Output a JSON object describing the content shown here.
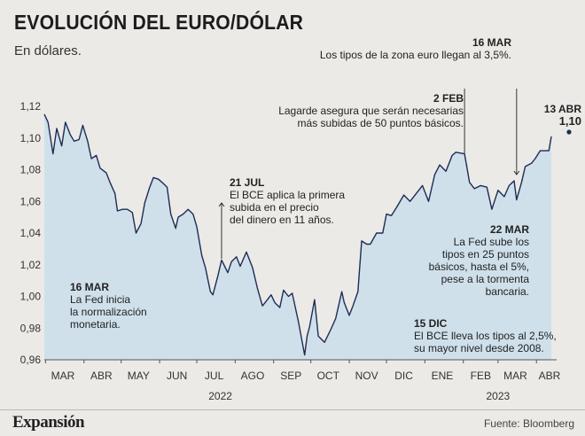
{
  "title": "EVOLUCIÓN DEL EURO/DÓLAR",
  "subtitle": "En dólares.",
  "footer": {
    "brand": "Expansión",
    "source": "Fuente: Bloomberg"
  },
  "colors": {
    "line": "#1d2c57",
    "area": "#cfe0ea",
    "background": "#eceae6"
  },
  "last_point": {
    "date": "13 ABR",
    "value": "1,10"
  },
  "annotations": [
    {
      "id": "a1",
      "date": "16 MAR",
      "l1": "La Fed inicia",
      "l2": "la normalización",
      "l3": "monetaria."
    },
    {
      "id": "a2",
      "date": "21 JUL",
      "l1": "El BCE aplica la primera",
      "l2": "subida en el precio",
      "l3": "del dinero en 11 años."
    },
    {
      "id": "a3",
      "date": "15 DIC",
      "l1": "El BCE lleva los tipos al 2,5%,",
      "l2": "su mayor nivel desde 2008."
    },
    {
      "id": "a4",
      "date": "2 FEB",
      "l1": "Lagarde asegura que serán necesarias",
      "l2": "más subidas de 50 puntos básicos."
    },
    {
      "id": "a5",
      "date": "22 MAR",
      "l1": "La Fed sube los",
      "l2": "tipos en 25 puntos",
      "l3": "básicos, hasta el 5%,",
      "l4": "pese a la tormenta",
      "l5": "bancaria."
    },
    {
      "id": "a6",
      "date": "16 MAR",
      "l1": "Los tipos de la zona euro llegan al 3,5%."
    }
  ],
  "chart_data": {
    "type": "area",
    "title": "EVOLUCIÓN DEL EURO/DÓLAR",
    "subtitle": "En dólares.",
    "xlabel": "",
    "ylabel": "",
    "ylim": [
      0.96,
      1.12
    ],
    "yticks": [
      "1,12",
      "1,10",
      "1,08",
      "1,06",
      "1,04",
      "1,02",
      "1,00",
      "0,98",
      "0,96"
    ],
    "x_months": [
      "MAR",
      "ABR",
      "MAY",
      "JUN",
      "JUL",
      "AGO",
      "SEP",
      "OCT",
      "NOV",
      "DIC",
      "ENE",
      "FEB",
      "MAR",
      "ABR"
    ],
    "x_years": [
      "2022",
      "2023"
    ],
    "grid": false,
    "series": [
      {
        "x": [
          "2022-02-28",
          "2022-03-03",
          "2022-03-07",
          "2022-03-10",
          "2022-03-14",
          "2022-03-17",
          "2022-03-21",
          "2022-03-24",
          "2022-03-28",
          "2022-03-31",
          "2022-04-04",
          "2022-04-07",
          "2022-04-11",
          "2022-04-14",
          "2022-04-19",
          "2022-04-22",
          "2022-04-26",
          "2022-04-28",
          "2022-05-02",
          "2022-05-06",
          "2022-05-10",
          "2022-05-13",
          "2022-05-17",
          "2022-05-20",
          "2022-05-24",
          "2022-05-27",
          "2022-05-31",
          "2022-06-03",
          "2022-06-07",
          "2022-06-10",
          "2022-06-14",
          "2022-06-16",
          "2022-06-20",
          "2022-06-24",
          "2022-06-28",
          "2022-07-01",
          "2022-07-05",
          "2022-07-08",
          "2022-07-12",
          "2022-07-14",
          "2022-07-18",
          "2022-07-21",
          "2022-07-26",
          "2022-07-29",
          "2022-08-02",
          "2022-08-05",
          "2022-08-10",
          "2022-08-15",
          "2022-08-19",
          "2022-08-23",
          "2022-08-26",
          "2022-08-30",
          "2022-09-02",
          "2022-09-06",
          "2022-09-09",
          "2022-09-13",
          "2022-09-16",
          "2022-09-21",
          "2022-09-26",
          "2022-09-28",
          "2022-09-30",
          "2022-10-04",
          "2022-10-07",
          "2022-10-12",
          "2022-10-17",
          "2022-10-21",
          "2022-10-26",
          "2022-10-28",
          "2022-11-01",
          "2022-11-04",
          "2022-11-08",
          "2022-11-11",
          "2022-11-15",
          "2022-11-18",
          "2022-11-23",
          "2022-11-28",
          "2022-12-01",
          "2022-12-05",
          "2022-12-09",
          "2022-12-15",
          "2022-12-20",
          "2022-12-23",
          "2022-12-30",
          "2023-01-04",
          "2023-01-09",
          "2023-01-13",
          "2023-01-18",
          "2023-01-23",
          "2023-01-26",
          "2023-02-02",
          "2023-02-06",
          "2023-02-10",
          "2023-02-15",
          "2023-02-20",
          "2023-02-24",
          "2023-03-01",
          "2023-03-06",
          "2023-03-10",
          "2023-03-14",
          "2023-03-16",
          "2023-03-20",
          "2023-03-23",
          "2023-03-28",
          "2023-03-31",
          "2023-04-04",
          "2023-04-07",
          "2023-04-11",
          "2023-04-13"
        ],
        "values": [
          1.115,
          1.11,
          1.09,
          1.106,
          1.095,
          1.11,
          1.102,
          1.098,
          1.099,
          1.108,
          1.098,
          1.087,
          1.089,
          1.081,
          1.078,
          1.072,
          1.065,
          1.054,
          1.055,
          1.055,
          1.053,
          1.04,
          1.046,
          1.059,
          1.069,
          1.075,
          1.074,
          1.072,
          1.069,
          1.052,
          1.043,
          1.05,
          1.052,
          1.055,
          1.052,
          1.044,
          1.026,
          1.018,
          1.003,
          1.001,
          1.013,
          1.023,
          1.015,
          1.022,
          1.025,
          1.019,
          1.028,
          1.018,
          1.005,
          0.994,
          0.997,
          1.001,
          0.996,
          0.993,
          1.004,
          1.0,
          1.002,
          0.984,
          0.963,
          0.975,
          0.981,
          0.998,
          0.975,
          0.971,
          0.979,
          0.986,
          1.003,
          0.996,
          0.988,
          0.994,
          1.003,
          1.035,
          1.033,
          1.033,
          1.04,
          1.04,
          1.052,
          1.051,
          1.056,
          1.064,
          1.06,
          1.063,
          1.07,
          1.06,
          1.077,
          1.083,
          1.079,
          1.089,
          1.091,
          1.09,
          1.072,
          1.068,
          1.07,
          1.069,
          1.055,
          1.067,
          1.063,
          1.07,
          1.073,
          1.061,
          1.072,
          1.082,
          1.084,
          1.087,
          1.092,
          1.092,
          1.092,
          1.101
        ]
      }
    ]
  }
}
